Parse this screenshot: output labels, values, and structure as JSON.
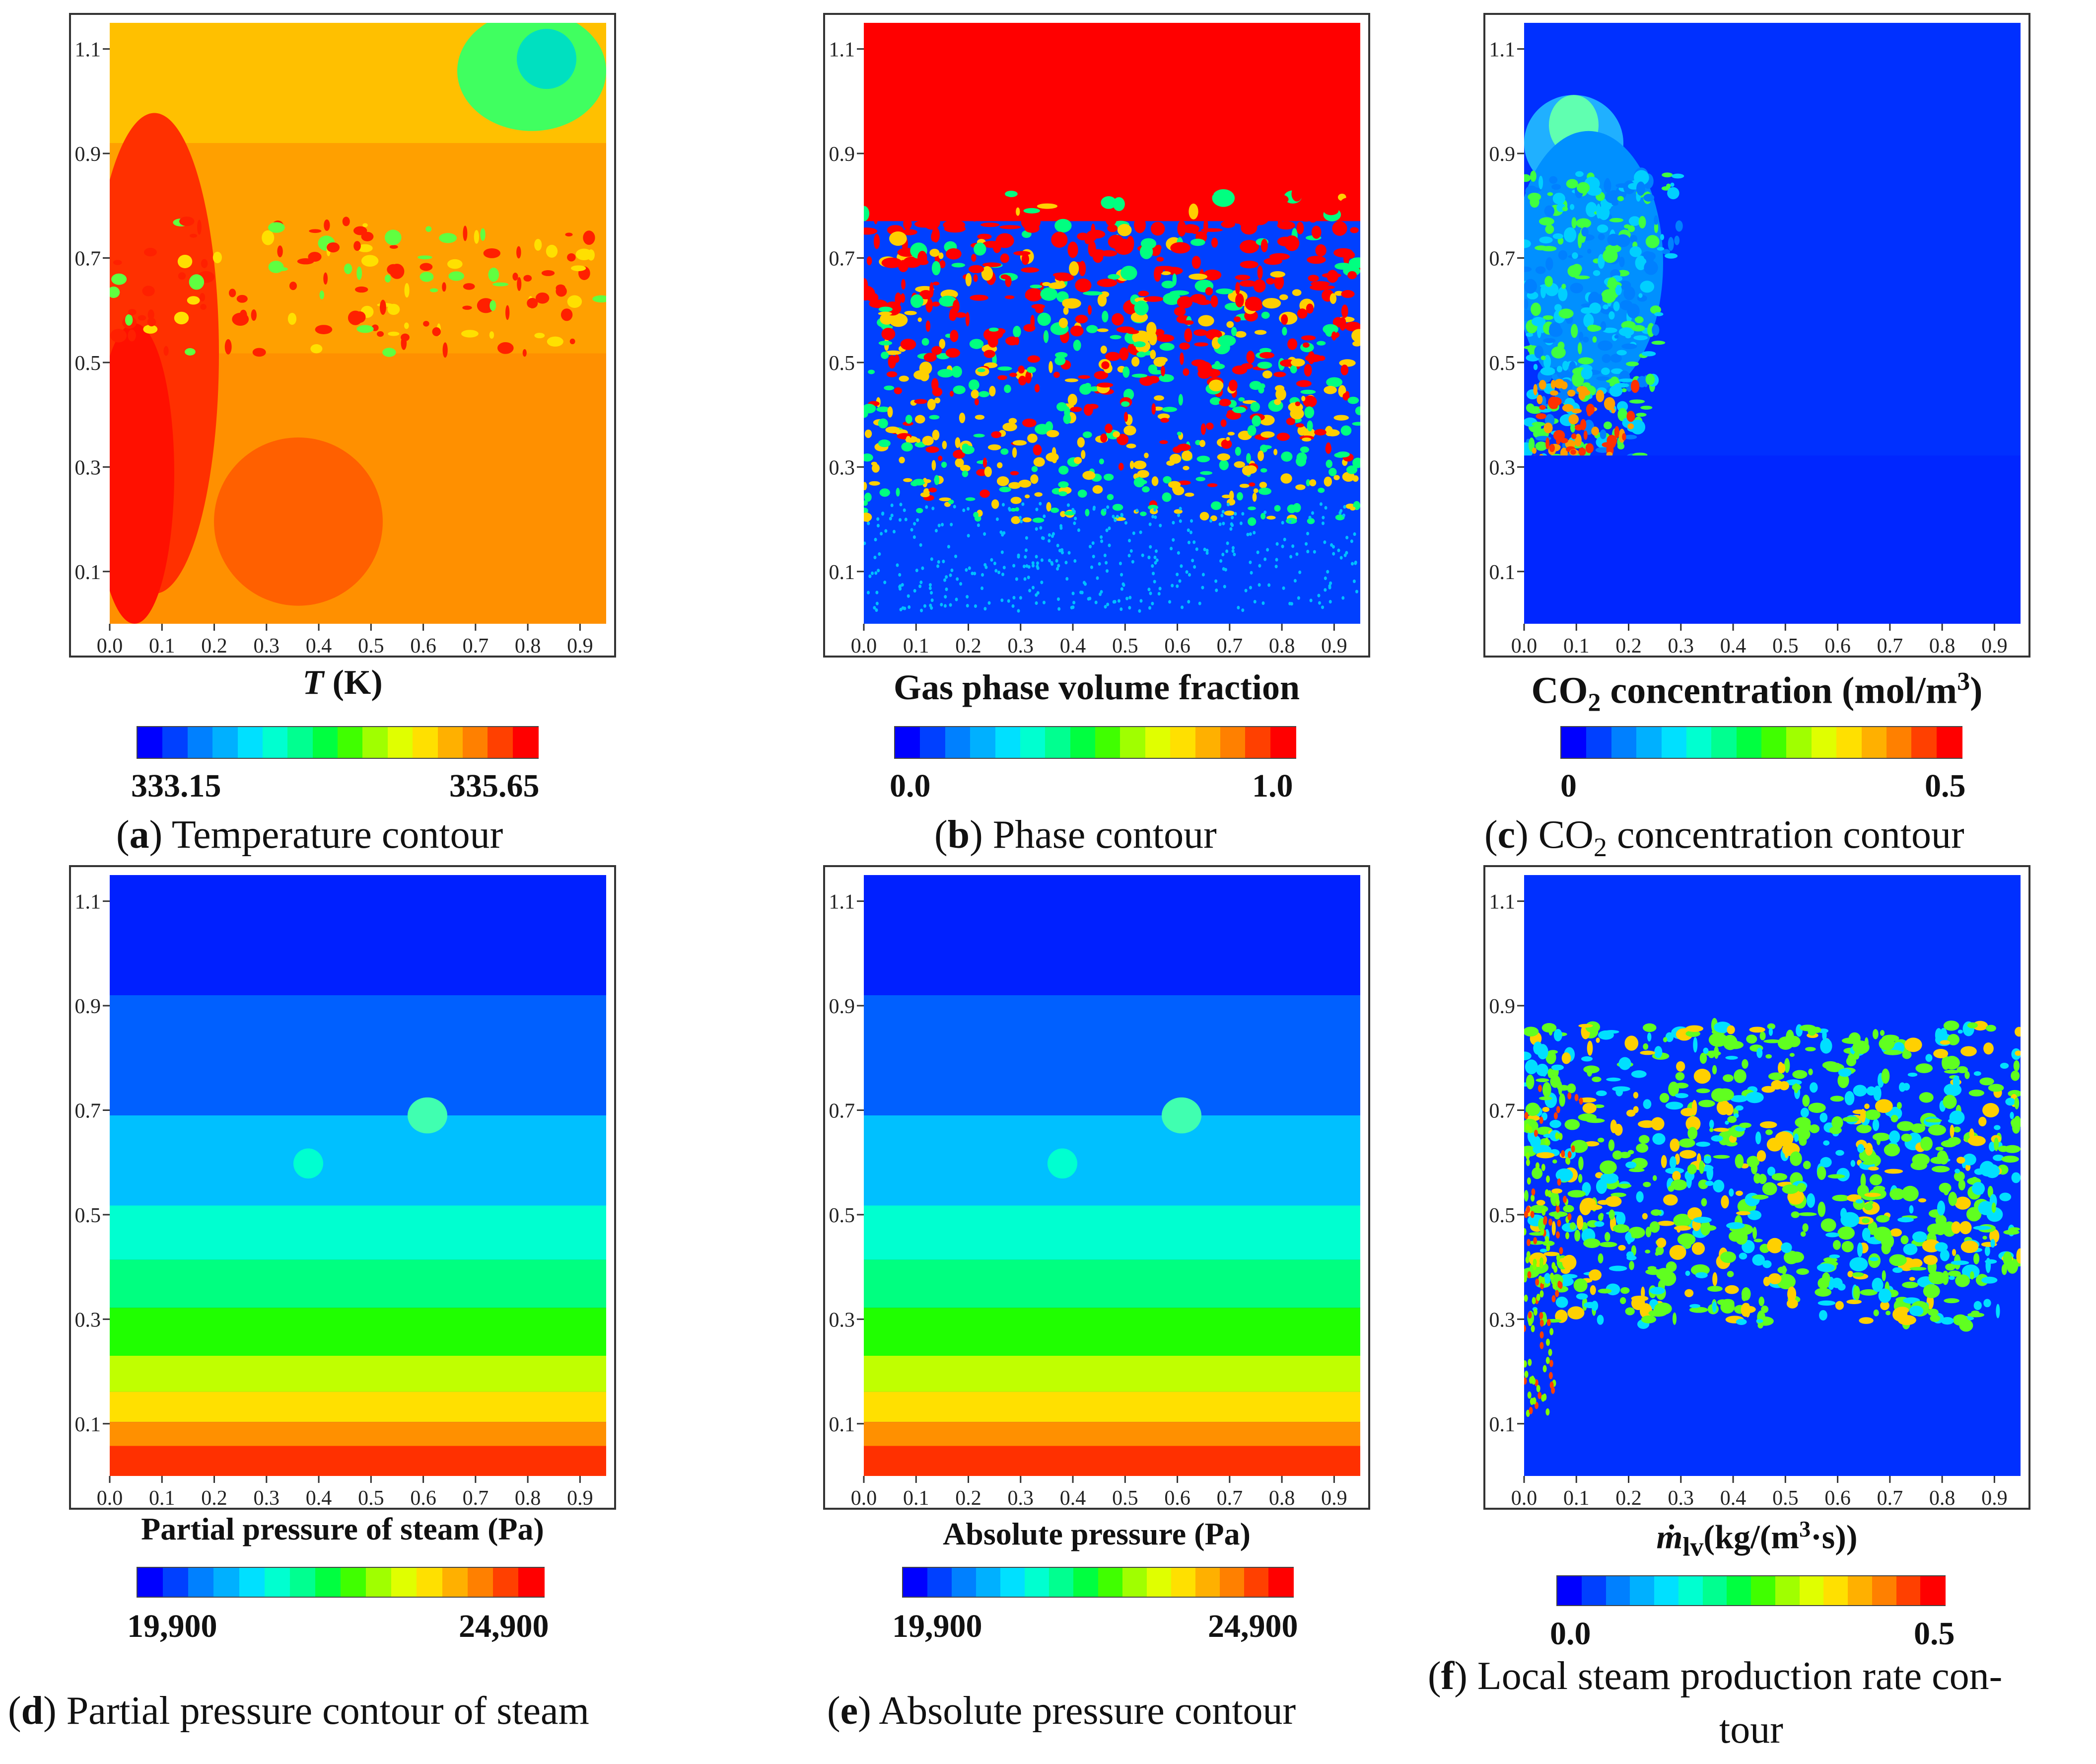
{
  "panels": [
    {
      "id": "a",
      "kind": "temperature",
      "xlabel_italic": "T",
      "xlabel_rest": " (K)",
      "cbar_min": "333.15",
      "cbar_max": "335.65",
      "caption_letter": "a",
      "caption_text": " Temperature contour"
    },
    {
      "id": "b",
      "kind": "phase",
      "xlabel": "Gas phase volume fraction",
      "cbar_min": "0.0",
      "cbar_max": "1.0",
      "caption_letter": "b",
      "caption_text": " Phase contour"
    },
    {
      "id": "c",
      "kind": "co2",
      "xlabel_pre": "CO",
      "xlabel_sub": "2",
      "xlabel_post": " concentration (mol/m",
      "xlabel_sup": "3",
      "xlabel_end": ")",
      "cbar_min": "0",
      "cbar_max": "0.5",
      "caption_letter": "c",
      "caption_pre": " CO",
      "caption_sub": "2",
      "caption_post": " concentration contour"
    },
    {
      "id": "d",
      "kind": "pressure",
      "xlabel": "Partial pressure of steam (Pa)",
      "cbar_min": "19,900",
      "cbar_max": "24,900",
      "caption_letter": "d",
      "caption_text": " Partial pressure contour of steam"
    },
    {
      "id": "e",
      "kind": "pressure",
      "xlabel": "Absolute pressure (Pa)",
      "cbar_min": "19,900",
      "cbar_max": "24,900",
      "caption_letter": "e",
      "caption_text": " Absolute pressure contour"
    },
    {
      "id": "f",
      "kind": "rate",
      "xlabel_symbol": "ṁ",
      "xlabel_sub": "lv",
      "xlabel_post": "(kg/(m",
      "xlabel_sup": "3",
      "xlabel_end": "·s))",
      "cbar_min": "0.0",
      "cbar_max": "0.5",
      "caption_letter": "f",
      "caption_line1": " Local steam production rate con-",
      "caption_line2": "tour"
    }
  ],
  "chart_data": [
    {
      "type": "heatmap",
      "title": "Temperature contour",
      "xlabel": "T (K)",
      "x_ticks": [
        "0.0",
        "0.1",
        "0.2",
        "0.3",
        "0.4",
        "0.5",
        "0.6",
        "0.7",
        "0.8",
        "0.9"
      ],
      "y_ticks": [
        "0.1",
        "0.3",
        "0.5",
        "0.7",
        "0.9",
        "1.1"
      ],
      "xlim": [
        0,
        0.95
      ],
      "ylim": [
        0,
        1.15
      ],
      "colorbar": {
        "min": 333.15,
        "max": 335.65
      }
    },
    {
      "type": "heatmap",
      "title": "Phase contour",
      "xlabel": "Gas phase volume fraction",
      "x_ticks": [
        "0.0",
        "0.1",
        "0.2",
        "0.3",
        "0.4",
        "0.5",
        "0.6",
        "0.7",
        "0.8",
        "0.9"
      ],
      "y_ticks": [
        "0.1",
        "0.3",
        "0.5",
        "0.7",
        "0.9",
        "1.1"
      ],
      "xlim": [
        0,
        0.95
      ],
      "ylim": [
        0,
        1.15
      ],
      "colorbar": {
        "min": 0.0,
        "max": 1.0
      }
    },
    {
      "type": "heatmap",
      "title": "CO2 concentration contour",
      "xlabel": "CO2 concentration (mol/m3)",
      "x_ticks": [
        "0.0",
        "0.1",
        "0.2",
        "0.3",
        "0.4",
        "0.5",
        "0.6",
        "0.7",
        "0.8",
        "0.9"
      ],
      "y_ticks": [
        "0.1",
        "0.3",
        "0.5",
        "0.7",
        "0.9",
        "1.1"
      ],
      "xlim": [
        0,
        0.95
      ],
      "ylim": [
        0,
        1.15
      ],
      "colorbar": {
        "min": 0,
        "max": 0.5
      }
    },
    {
      "type": "heatmap",
      "title": "Partial pressure contour of steam",
      "xlabel": "Partial pressure of steam (Pa)",
      "x_ticks": [
        "0.0",
        "0.1",
        "0.2",
        "0.3",
        "0.4",
        "0.5",
        "0.6",
        "0.7",
        "0.8",
        "0.9"
      ],
      "y_ticks": [
        "0.1",
        "0.3",
        "0.5",
        "0.7",
        "0.9",
        "1.1"
      ],
      "xlim": [
        0,
        0.95
      ],
      "ylim": [
        0,
        1.15
      ],
      "colorbar": {
        "min": 19900,
        "max": 24900
      }
    },
    {
      "type": "heatmap",
      "title": "Absolute pressure contour",
      "xlabel": "Absolute pressure (Pa)",
      "x_ticks": [
        "0.0",
        "0.1",
        "0.2",
        "0.3",
        "0.4",
        "0.5",
        "0.6",
        "0.7",
        "0.8",
        "0.9"
      ],
      "y_ticks": [
        "0.1",
        "0.3",
        "0.5",
        "0.7",
        "0.9",
        "1.1"
      ],
      "xlim": [
        0,
        0.95
      ],
      "ylim": [
        0,
        1.15
      ],
      "colorbar": {
        "min": 19900,
        "max": 24900
      }
    },
    {
      "type": "heatmap",
      "title": "Local steam production rate contour",
      "xlabel": "ṁlv (kg/(m3·s))",
      "x_ticks": [
        "0.0",
        "0.1",
        "0.2",
        "0.3",
        "0.4",
        "0.5",
        "0.6",
        "0.7",
        "0.8",
        "0.9"
      ],
      "y_ticks": [
        "0.1",
        "0.3",
        "0.5",
        "0.7",
        "0.9",
        "1.1"
      ],
      "xlim": [
        0,
        0.95
      ],
      "ylim": [
        0,
        1.15
      ],
      "colorbar": {
        "min": 0.0,
        "max": 0.5
      }
    }
  ],
  "colormap": [
    "#0000ff",
    "#0040ff",
    "#0080ff",
    "#00b0ff",
    "#00e0ff",
    "#00ffd0",
    "#00ff90",
    "#00ff40",
    "#40ff00",
    "#a0ff00",
    "#e0ff00",
    "#ffe000",
    "#ffb000",
    "#ff8000",
    "#ff4000",
    "#ff0000"
  ]
}
